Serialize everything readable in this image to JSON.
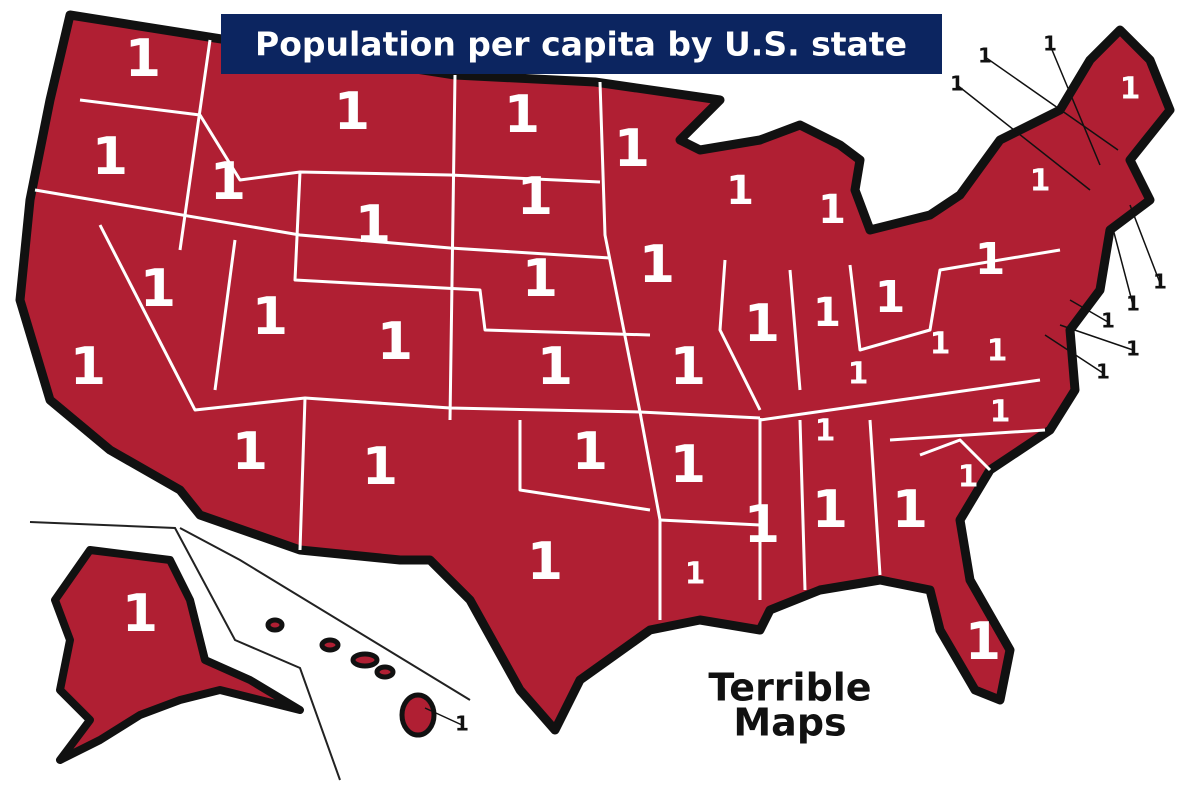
{
  "title": "Population per capita by U.S. state",
  "regions": [
    {
      "value": 1
    },
    {
      "value": 1
    },
    {
      "value": 1
    },
    {
      "value": 1
    },
    {
      "value": 1
    },
    {
      "value": 1
    },
    {
      "value": 1
    },
    {
      "value": 1
    },
    {
      "value": 1
    },
    {
      "value": 1
    },
    {
      "value": 1
    },
    {
      "value": 1
    },
    {
      "value": 1
    },
    {
      "value": 1
    },
    {
      "value": 1
    },
    {
      "value": 1
    },
    {
      "value": 1
    },
    {
      "value": 1
    },
    {
      "value": 1
    },
    {
      "value": 1
    },
    {
      "value": 1
    },
    {
      "value": 1
    },
    {
      "value": 1
    },
    {
      "value": 1
    },
    {
      "value": 1
    },
    {
      "value": 1
    },
    {
      "value": 1
    },
    {
      "value": 1
    },
    {
      "value": 1
    },
    {
      "value": 1
    },
    {
      "value": 1
    },
    {
      "value": 1
    },
    {
      "value": 1
    },
    {
      "value": 1
    },
    {
      "value": 1
    },
    {
      "value": 1
    },
    {
      "value": 1
    },
    {
      "value": 1
    },
    {
      "value": 1
    },
    {
      "value": 1
    },
    {
      "value": 1
    },
    {
      "value": 1
    },
    {
      "value": 1
    },
    {
      "value": 1
    },
    {
      "value": 1
    },
    {
      "value": 1
    },
    {
      "value": 1
    },
    {
      "value": 1
    },
    {
      "value": 1
    },
    {
      "value": 1
    }
  ],
  "credit": [
    "Terrible",
    "Maps"
  ]
}
